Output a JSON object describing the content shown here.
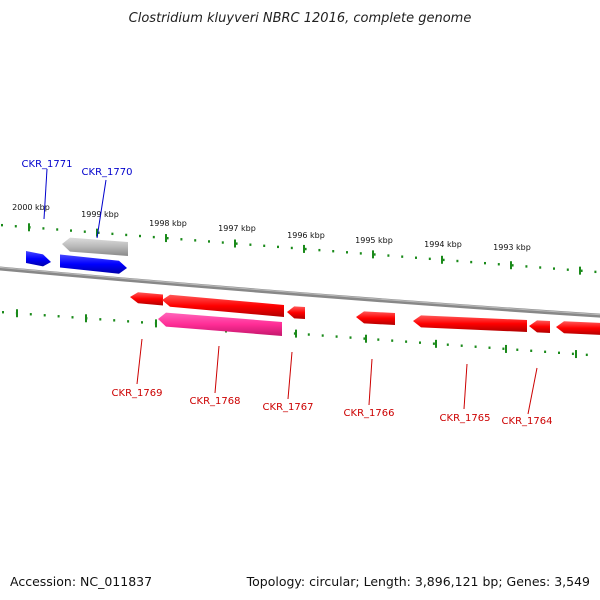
{
  "title": "Clostridium kluyveri NBRC 12016, complete genome",
  "footer": {
    "accession": "Accession: NC_011837",
    "summary": "Topology: circular; Length: 3,896,121 bp; Genes: 3,549"
  },
  "colors": {
    "background": "#ffffff",
    "backbone": "#888888",
    "tick": "#1a8a1a",
    "label_blue": "#0000cc",
    "label_red": "#cc0000",
    "gene_blue": "#0000ff",
    "gene_red": "#ff0000",
    "gene_pink": "#ff3399",
    "gene_gray": "#b0b0b0"
  },
  "kbp_labels": [
    "2000 kbp",
    "1999 kbp",
    "1998 kbp",
    "1997 kbp",
    "1996 kbp",
    "1995 kbp",
    "1994 kbp",
    "1993 kbp"
  ],
  "top_genes": [
    {
      "id": "CKR_1771",
      "color": "blue"
    },
    {
      "id": "CKR_1770",
      "color": "blue"
    }
  ],
  "bottom_genes": [
    {
      "id": "CKR_1769",
      "color": "red"
    },
    {
      "id": "CKR_1768",
      "color": "red"
    },
    {
      "id": "CKR_1767",
      "color": "red"
    },
    {
      "id": "CKR_1766",
      "color": "red"
    },
    {
      "id": "CKR_1765",
      "color": "red"
    },
    {
      "id": "CKR_1764",
      "color": "red"
    }
  ]
}
